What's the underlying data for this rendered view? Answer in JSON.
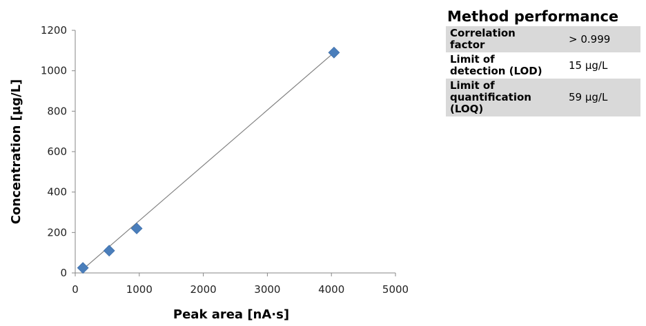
{
  "chart_data": {
    "type": "scatter",
    "xlabel": "Peak area [nA·s]",
    "ylabel": "Concentration [µg/L]",
    "xlim": [
      0,
      5000
    ],
    "ylim": [
      0,
      1200
    ],
    "xticks": [
      0,
      1000,
      2000,
      3000,
      4000,
      5000
    ],
    "yticks": [
      0,
      200,
      400,
      600,
      800,
      1000,
      1200
    ],
    "grid": false,
    "legend": "none",
    "marker": "diamond",
    "marker_color": "#4a7ebb",
    "trendline_color": "#808080",
    "points": [
      {
        "x": 120,
        "y": 25
      },
      {
        "x": 530,
        "y": 110
      },
      {
        "x": 960,
        "y": 220
      },
      {
        "x": 4040,
        "y": 1090
      }
    ],
    "trendline": {
      "x": [
        120,
        4040
      ],
      "y": [
        18,
        1090
      ]
    }
  },
  "performance": {
    "title": "Method performance",
    "rows": [
      {
        "parameter": "Correlation factor",
        "value": "> 0.999"
      },
      {
        "parameter": "Limit of detection (LOD)",
        "value": "15 µg/L"
      },
      {
        "parameter": "Limit of quantification (LOQ)",
        "value": "59 µg/L"
      }
    ]
  }
}
